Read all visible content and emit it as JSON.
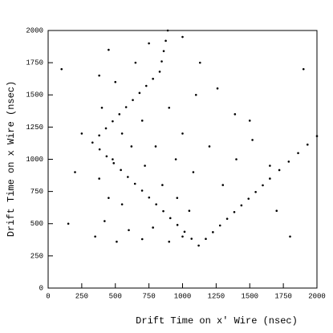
{
  "chart_data": {
    "type": "scatter",
    "xlabel": "Drift Time on x′ Wire (nsec)",
    "ylabel": "Drift Time on x Wire (nsec)",
    "color": "#000000",
    "xlim": [
      0,
      2000
    ],
    "ylim": [
      0,
      2000
    ],
    "xticks": [
      0,
      250,
      500,
      750,
      1000,
      1250,
      1500,
      1750,
      2000
    ],
    "yticks": [
      0,
      250,
      500,
      750,
      1000,
      1250,
      1500,
      1750,
      2000
    ],
    "x": [
      330,
      383,
      435,
      488,
      541,
      593,
      646,
      699,
      751,
      804,
      857,
      909,
      962,
      1015,
      1067,
      1120,
      380,
      430,
      480,
      530,
      580,
      630,
      680,
      730,
      780,
      830,
      845,
      860,
      875,
      890,
      1173,
      1226,
      1279,
      1332,
      1385,
      1438,
      1491,
      1544,
      1597,
      1650,
      1720,
      1790,
      1860,
      1930,
      2000,
      1000,
      1130,
      1260,
      1390,
      1520,
      1650,
      350,
      420,
      510,
      600,
      700,
      780,
      900,
      1000,
      450,
      550,
      380,
      480,
      620,
      720,
      850,
      960,
      1050,
      400,
      550,
      700,
      800,
      950,
      1080,
      500,
      650,
      750,
      450,
      380,
      900,
      1000,
      1100,
      1200,
      1300,
      1400,
      1500,
      1700,
      1800,
      200,
      150,
      250,
      100,
      1900
    ],
    "values": [
      1130,
      1077,
      1023,
      970,
      917,
      863,
      810,
      757,
      703,
      650,
      597,
      543,
      490,
      437,
      383,
      330,
      1185,
      1240,
      1295,
      1350,
      1405,
      1460,
      1515,
      1570,
      1625,
      1680,
      1760,
      1840,
      1920,
      2000,
      382,
      434,
      486,
      538,
      590,
      642,
      694,
      746,
      798,
      850,
      916,
      982,
      1048,
      1114,
      1180,
      1950,
      1750,
      1550,
      1350,
      1150,
      950,
      400,
      520,
      360,
      450,
      380,
      470,
      360,
      400,
      700,
      650,
      850,
      1000,
      1100,
      950,
      800,
      700,
      600,
      1400,
      1200,
      1300,
      1100,
      1000,
      900,
      1600,
      1750,
      1900,
      1850,
      1650,
      1400,
      1200,
      1500,
      1100,
      800,
      1000,
      1300,
      600,
      400,
      900,
      500,
      1200,
      1700,
      1700
    ]
  }
}
